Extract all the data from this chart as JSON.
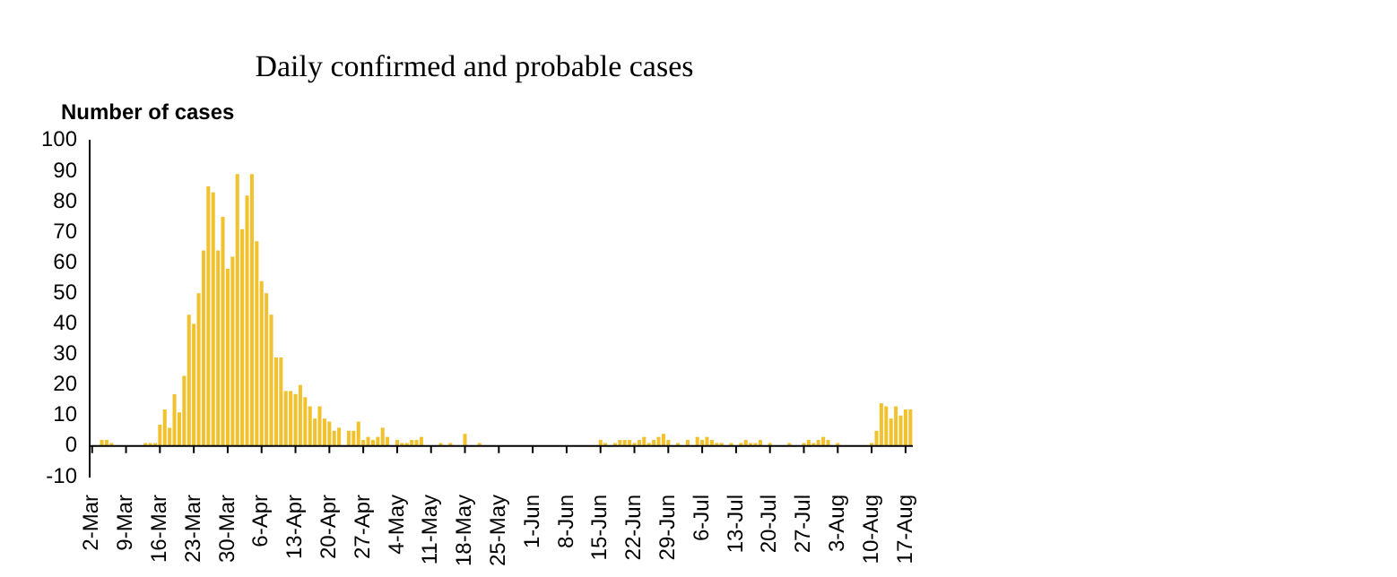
{
  "chart_data": {
    "type": "bar",
    "title": "Daily confirmed and probable cases",
    "ylabel": "Number of cases",
    "color": "#f2c12e",
    "categories": [
      "2-Mar",
      null,
      null,
      null,
      null,
      null,
      null,
      "9-Mar",
      null,
      null,
      null,
      null,
      null,
      null,
      "16-Mar",
      null,
      null,
      null,
      null,
      null,
      null,
      "23-Mar",
      null,
      null,
      null,
      null,
      null,
      null,
      "30-Mar",
      null,
      null,
      null,
      null,
      null,
      null,
      "6-Apr",
      null,
      null,
      null,
      null,
      null,
      null,
      "13-Apr",
      null,
      null,
      null,
      null,
      null,
      null,
      "20-Apr",
      null,
      null,
      null,
      null,
      null,
      null,
      "27-Apr",
      null,
      null,
      null,
      null,
      null,
      null,
      "4-May",
      null,
      null,
      null,
      null,
      null,
      null,
      "11-May",
      null,
      null,
      null,
      null,
      null,
      null,
      "18-May",
      null,
      null,
      null,
      null,
      null,
      null,
      "25-May",
      null,
      null,
      null,
      null,
      null,
      null,
      "1-Jun",
      null,
      null,
      null,
      null,
      null,
      null,
      "8-Jun",
      null,
      null,
      null,
      null,
      null,
      null,
      "15-Jun",
      null,
      null,
      null,
      null,
      null,
      null,
      "22-Jun",
      null,
      null,
      null,
      null,
      null,
      null,
      "29-Jun",
      null,
      null,
      null,
      null,
      null,
      null,
      "6-Jul",
      null,
      null,
      null,
      null,
      null,
      null,
      "13-Jul",
      null,
      null,
      null,
      null,
      null,
      null,
      "20-Jul",
      null,
      null,
      null,
      null,
      null,
      null,
      "27-Jul",
      null,
      null,
      null,
      null,
      null,
      null,
      "3-Aug",
      null,
      null,
      null,
      null,
      null,
      null,
      "10-Aug",
      null,
      null,
      null,
      null,
      null,
      null,
      "17-Aug",
      null
    ],
    "values": [
      0,
      0,
      2,
      2,
      1,
      0,
      0,
      0,
      0,
      0,
      0,
      1,
      1,
      1,
      7,
      12,
      6,
      17,
      11,
      23,
      43,
      40,
      50,
      64,
      85,
      83,
      64,
      75,
      58,
      62,
      89,
      71,
      82,
      89,
      67,
      54,
      50,
      43,
      29,
      29,
      18,
      18,
      17,
      20,
      16,
      13,
      9,
      13,
      9,
      8,
      5,
      6,
      0,
      5,
      5,
      8,
      2,
      3,
      2,
      3,
      6,
      3,
      0,
      2,
      1,
      1,
      2,
      2,
      3,
      0,
      0,
      0,
      1,
      0,
      1,
      0,
      0,
      4,
      0,
      0,
      1,
      0,
      0,
      0,
      0,
      0,
      0,
      0,
      0,
      0,
      0,
      0,
      0,
      0,
      0,
      0,
      0,
      0,
      0,
      0,
      0,
      0,
      0,
      0,
      0,
      2,
      1,
      0,
      1,
      2,
      2,
      2,
      1,
      2,
      3,
      1,
      2,
      3,
      4,
      2,
      0,
      1,
      0,
      2,
      0,
      3,
      2,
      3,
      2,
      1,
      1,
      0,
      1,
      0,
      1,
      2,
      1,
      1,
      2,
      0,
      1,
      0,
      0,
      0,
      1,
      0,
      0,
      1,
      2,
      1,
      2,
      3,
      2,
      0,
      1,
      0,
      0,
      0,
      0,
      0,
      0,
      1,
      5,
      14,
      13,
      9,
      13,
      10,
      12,
      12
    ],
    "ylim": [
      -10,
      100
    ],
    "yticks": [
      -10,
      0,
      10,
      20,
      30,
      40,
      50,
      60,
      70,
      80,
      90,
      100
    ],
    "grid": false,
    "legend": false
  }
}
